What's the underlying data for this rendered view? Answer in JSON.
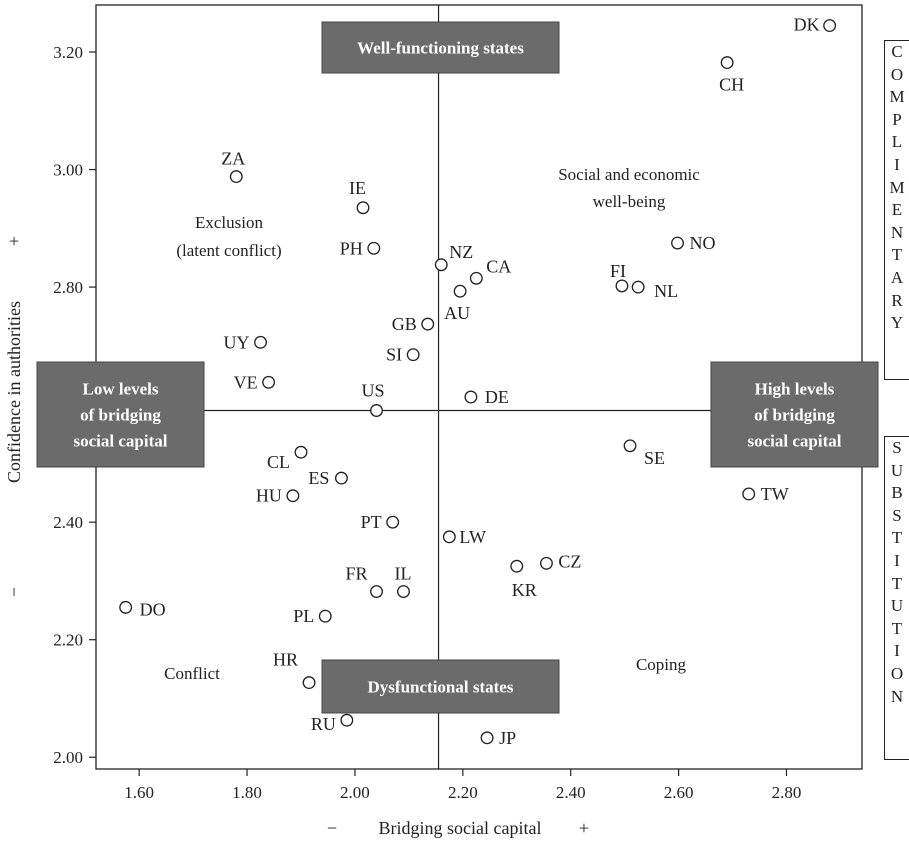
{
  "chart_data": {
    "type": "scatter",
    "xlabel": "Bridging social capital",
    "xlabel_minus": "−",
    "xlabel_plus": "+",
    "ylabel": "Confidence in authorities",
    "ylabel_minus": "−",
    "ylabel_plus": "+",
    "xlim": [
      1.52,
      2.94
    ],
    "ylim": [
      1.98,
      3.28
    ],
    "xticks": [
      1.6,
      1.8,
      2.0,
      2.2,
      2.4,
      2.6,
      2.8
    ],
    "xtick_labels": [
      "1.60",
      "1.80",
      "2.00",
      "2.20",
      "2.40",
      "2.60",
      "2.80"
    ],
    "yticks": [
      2.0,
      2.2,
      2.4,
      2.8,
      3.0,
      3.2
    ],
    "ytick_labels": [
      "2.00",
      "2.20",
      "2.40",
      "2.80",
      "3.00",
      "3.20"
    ],
    "crosshair": {
      "x": 2.155,
      "y": 2.59
    },
    "points": [
      {
        "label": "DK",
        "x": 2.88,
        "y": 3.245
      },
      {
        "label": "CH",
        "x": 2.69,
        "y": 3.182
      },
      {
        "label": "ZA",
        "x": 1.78,
        "y": 2.988
      },
      {
        "label": "IE",
        "x": 2.015,
        "y": 2.935
      },
      {
        "label": "PH",
        "x": 2.035,
        "y": 2.866
      },
      {
        "label": "NZ",
        "x": 2.16,
        "y": 2.838
      },
      {
        "label": "CA",
        "x": 2.225,
        "y": 2.815
      },
      {
        "label": "AU",
        "x": 2.195,
        "y": 2.793
      },
      {
        "label": "NO",
        "x": 2.598,
        "y": 2.875
      },
      {
        "label": "FI",
        "x": 2.495,
        "y": 2.802
      },
      {
        "label": "NL",
        "x": 2.525,
        "y": 2.8
      },
      {
        "label": "GB",
        "x": 2.135,
        "y": 2.737
      },
      {
        "label": "UY",
        "x": 1.825,
        "y": 2.706
      },
      {
        "label": "SI",
        "x": 2.108,
        "y": 2.685
      },
      {
        "label": "VE",
        "x": 1.84,
        "y": 2.638
      },
      {
        "label": "US",
        "x": 2.04,
        "y": 2.59
      },
      {
        "label": "DE",
        "x": 2.215,
        "y": 2.613
      },
      {
        "label": "SE",
        "x": 2.51,
        "y": 2.53
      },
      {
        "label": "CL",
        "x": 1.9,
        "y": 2.519
      },
      {
        "label": "ES",
        "x": 1.975,
        "y": 2.475
      },
      {
        "label": "HU",
        "x": 1.885,
        "y": 2.445
      },
      {
        "label": "TW",
        "x": 2.73,
        "y": 2.448
      },
      {
        "label": "PT",
        "x": 2.07,
        "y": 2.4
      },
      {
        "label": "LW",
        "x": 2.175,
        "y": 2.375
      },
      {
        "label": "CZ",
        "x": 2.355,
        "y": 2.33
      },
      {
        "label": "KR",
        "x": 2.3,
        "y": 2.325
      },
      {
        "label": "FR",
        "x": 2.04,
        "y": 2.282
      },
      {
        "label": "IL",
        "x": 2.09,
        "y": 2.282
      },
      {
        "label": "DO",
        "x": 1.575,
        "y": 2.255
      },
      {
        "label": "PL",
        "x": 1.945,
        "y": 2.24
      },
      {
        "label": "HR",
        "x": 1.915,
        "y": 2.127
      },
      {
        "label": "RU",
        "x": 1.985,
        "y": 2.063
      },
      {
        "label": "JP",
        "x": 2.245,
        "y": 2.033
      }
    ],
    "region_labels": {
      "exclusion": [
        "Exclusion",
        "(latent conflict)"
      ],
      "wellbeing": [
        "Social and economic",
        "well-being"
      ],
      "conflict": "Conflict",
      "coping": "Coping"
    },
    "boxes": {
      "top": "Well-functioning states",
      "bottom": "Dysfunctional states",
      "left": [
        "Low levels",
        "of bridging",
        "social capital"
      ],
      "right": [
        "High levels",
        "of bridging",
        "social capital"
      ]
    },
    "side_labels": {
      "complimentary": [
        "C",
        "O",
        "M",
        "P",
        "L",
        "I",
        "M",
        "E",
        "N",
        "T",
        "A",
        "R",
        "Y"
      ],
      "substitution": [
        "S",
        "U",
        "B",
        "S",
        "T",
        "I",
        "T",
        "U",
        "T",
        "I",
        "O",
        "N"
      ]
    },
    "colors": {
      "box_fill": "#6b6b6b",
      "box_text": "#ffffff",
      "ink": "#222222"
    },
    "grid": false
  }
}
